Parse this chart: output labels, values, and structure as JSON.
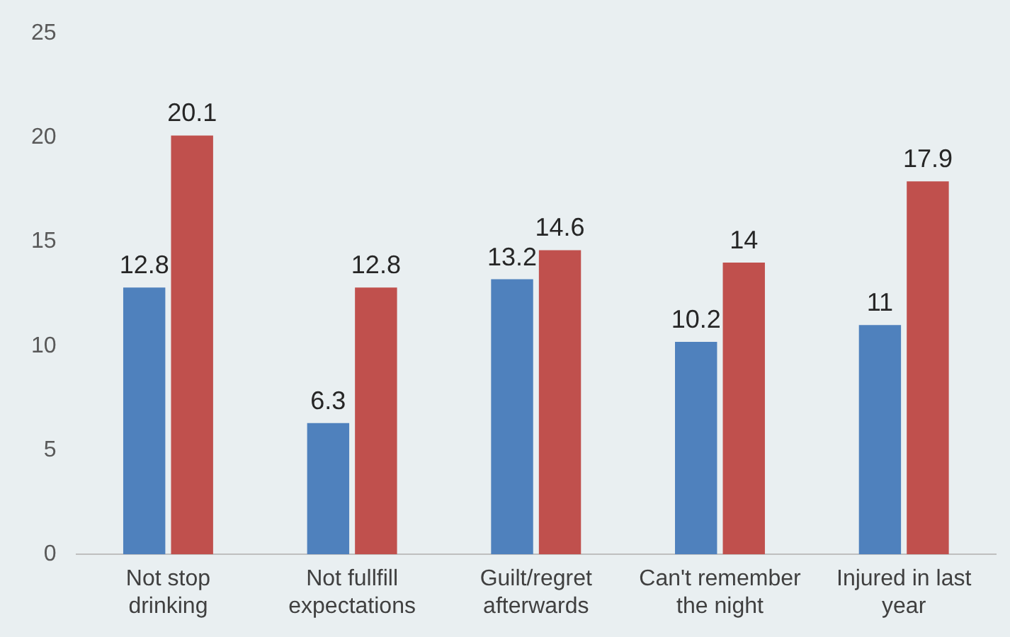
{
  "chart_data": {
    "type": "bar",
    "categories": [
      "Not stop drinking",
      "Not fullfill expectations",
      "Guilt/regret afterwards",
      "Can't remember the night",
      "Injured in last year"
    ],
    "series": [
      {
        "color": "#4f81bd",
        "values": [
          12.8,
          6.3,
          13.2,
          10.2,
          11
        ]
      },
      {
        "color": "#c0504d",
        "values": [
          20.1,
          12.8,
          14.6,
          14,
          17.9
        ]
      }
    ],
    "ylim": [
      0,
      25
    ],
    "yticks": [
      0,
      5,
      10,
      15,
      20,
      25
    ],
    "grid": false,
    "legend": false,
    "data_labels": true
  }
}
